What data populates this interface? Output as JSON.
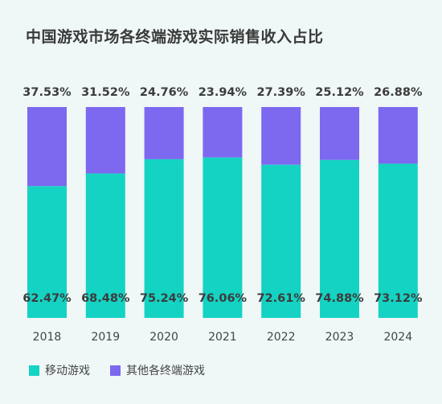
{
  "chart_data": {
    "type": "bar",
    "stacked": true,
    "title": "中国游戏市场各终端游戏实际销售收入占比",
    "categories": [
      "2018",
      "2019",
      "2020",
      "2021",
      "2022",
      "2023",
      "2024"
    ],
    "series": [
      {
        "name": "移动游戏",
        "color": "#14d3c3",
        "values": [
          62.47,
          68.48,
          75.24,
          76.06,
          72.61,
          74.88,
          73.12
        ],
        "labels": [
          "62.47%",
          "68.48%",
          "75.24%",
          "76.06%",
          "72.61%",
          "74.88%",
          "73.12%"
        ]
      },
      {
        "name": "其他各终端游戏",
        "color": "#7d68f0",
        "values": [
          37.53,
          31.52,
          24.76,
          23.94,
          27.39,
          25.12,
          26.88
        ],
        "labels": [
          "37.53%",
          "31.52%",
          "24.76%",
          "23.94%",
          "27.39%",
          "25.12%",
          "26.88%"
        ]
      }
    ],
    "ylim": [
      0,
      100
    ],
    "legend_position": "bottom-left",
    "grid": false
  }
}
